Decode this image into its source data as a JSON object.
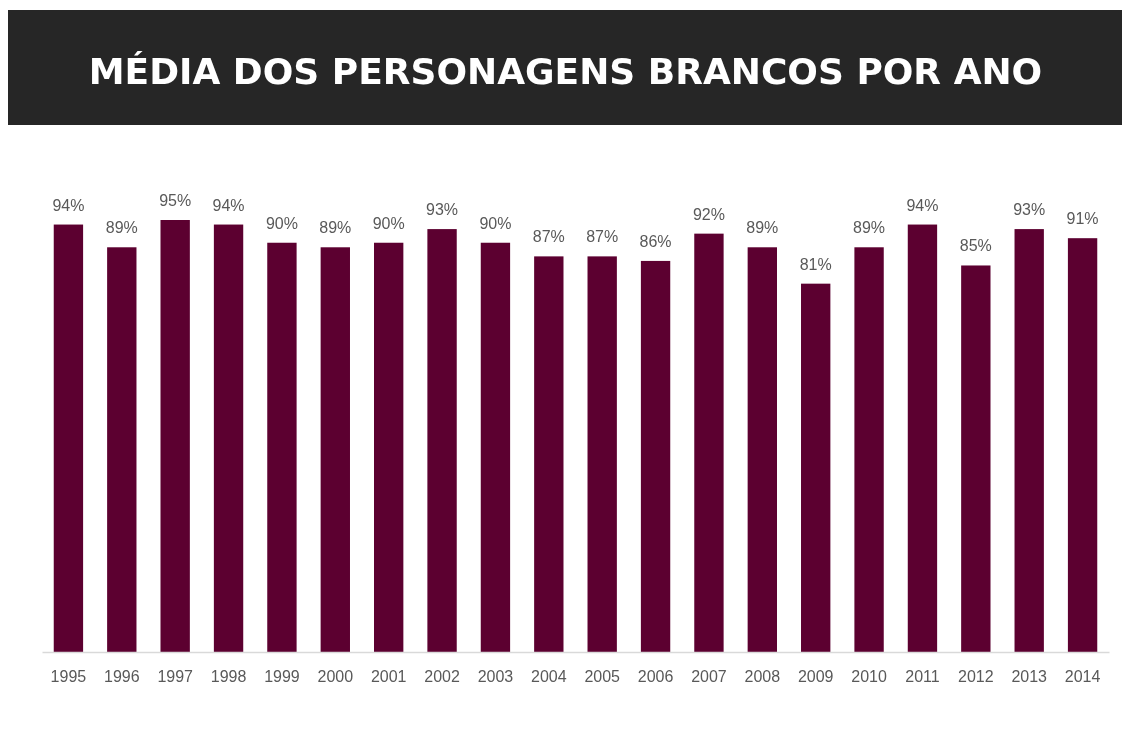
{
  "chart_data": {
    "type": "bar",
    "title": "MÉDIA DOS PERSONAGENS BRANCOS POR ANO",
    "categories": [
      "1995",
      "1996",
      "1997",
      "1998",
      "1999",
      "2000",
      "2001",
      "2002",
      "2003",
      "2004",
      "2005",
      "2006",
      "2007",
      "2008",
      "2009",
      "2010",
      "2011",
      "2012",
      "2013",
      "2014"
    ],
    "values": [
      94,
      89,
      95,
      94,
      90,
      89,
      90,
      93,
      90,
      87,
      87,
      86,
      92,
      89,
      81,
      89,
      94,
      85,
      93,
      91
    ],
    "value_labels": [
      "94%",
      "89%",
      "95%",
      "94%",
      "90%",
      "89%",
      "90%",
      "93%",
      "90%",
      "87%",
      "87%",
      "86%",
      "92%",
      "89%",
      "81%",
      "89%",
      "94%",
      "85%",
      "93%",
      "91%"
    ],
    "color": "#5c0030",
    "grid": false,
    "legend": false
  }
}
